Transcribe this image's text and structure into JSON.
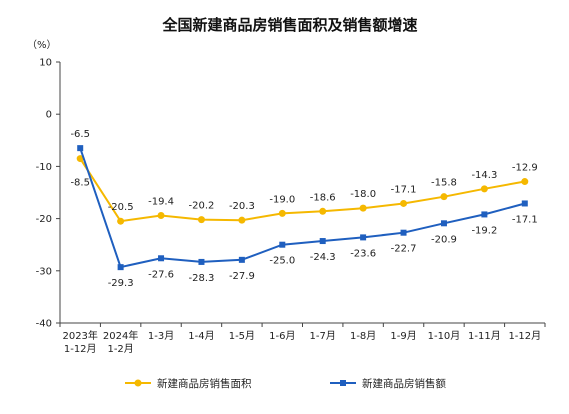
{
  "chart_data": {
    "type": "line",
    "title": "全国新建商品房销售面积及销售额增速",
    "unit_label": "（%）",
    "ylim": [
      -40,
      10
    ],
    "yticks": [
      10,
      0,
      -10,
      -20,
      -30,
      -40
    ],
    "categories": [
      [
        "2023年",
        "1-12月"
      ],
      [
        "2024年",
        "1-2月"
      ],
      [
        "1-3月"
      ],
      [
        "1-4月"
      ],
      [
        "1-5月"
      ],
      [
        "1-6月"
      ],
      [
        "1-7月"
      ],
      [
        "1-8月"
      ],
      [
        "1-9月"
      ],
      [
        "1-10月"
      ],
      [
        "1-11月"
      ],
      [
        "1-12月"
      ]
    ],
    "grid": false,
    "legend_position": "bottom",
    "series": [
      {
        "name": "新建商品房销售面积",
        "color": "#F5B800",
        "marker": "circle",
        "values": [
          -8.5,
          -20.5,
          -19.4,
          -20.2,
          -20.3,
          -19.0,
          -18.6,
          -18.0,
          -17.1,
          -15.8,
          -14.3,
          -12.9
        ],
        "labels": [
          "-8.5",
          "-20.5",
          "-19.4",
          "-20.2",
          "-20.3",
          "-19.0",
          "-18.6",
          "-18.0",
          "-17.1",
          "-15.8",
          "-14.3",
          "-12.9"
        ]
      },
      {
        "name": "新建商品房销售额",
        "color": "#1F5FBF",
        "marker": "square",
        "values": [
          -6.5,
          -29.3,
          -27.6,
          -28.3,
          -27.9,
          -25.0,
          -24.3,
          -23.6,
          -22.7,
          -20.9,
          -19.2,
          -17.1
        ],
        "labels": [
          "-6.5",
          "-29.3",
          "-27.6",
          "-28.3",
          "-27.9",
          "-25.0",
          "-24.3",
          "-23.6",
          "-22.7",
          "-20.9",
          "-19.2",
          "-17.1"
        ]
      }
    ]
  }
}
